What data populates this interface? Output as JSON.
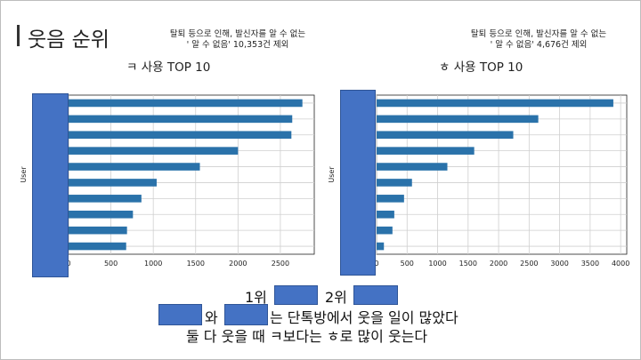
{
  "slide": {
    "title": "웃음 순위",
    "accent_color": "#333333",
    "mask_color": "#4472c4"
  },
  "notes": {
    "left": [
      "탈퇴 등으로 인해, 발신자를 알 수 없는",
      "' 알 수 없음' 10,353건 제외"
    ],
    "right": [
      "탈퇴 등으로 인해, 발신자를 알 수 없는",
      "' 알 수 없음' 4,676건 제외"
    ]
  },
  "bottom_text": {
    "rank1": "1위",
    "rank2": "2위",
    "line2_mid": "와",
    "line2_end": "는 단톡방에서 웃을 일이 많았다",
    "line3": "둘 다 웃을 때 ㅋ보다는 ㅎ로 많이 웃는다"
  },
  "chart_data": [
    {
      "type": "bar",
      "orientation": "horizontal",
      "title": "ㅋ 사용 TOP 10",
      "ylabel": "User",
      "xlabel": "",
      "values": [
        2760,
        2640,
        2630,
        2000,
        1550,
        1040,
        860,
        760,
        690,
        680
      ],
      "xlim": [
        0,
        2900
      ],
      "xticks": [
        0,
        500,
        1000,
        1500,
        2000,
        2500
      ],
      "bar_color": "#2a72aa",
      "grid": true
    },
    {
      "type": "bar",
      "orientation": "horizontal",
      "title": "ㅎ 사용 TOP 10",
      "ylabel": "User",
      "xlabel": "",
      "values": [
        3880,
        2650,
        2240,
        1600,
        1160,
        580,
        450,
        290,
        260,
        120
      ],
      "xlim": [
        0,
        4100
      ],
      "xticks": [
        0,
        500,
        1000,
        1500,
        2000,
        2500,
        3000,
        3500,
        4000
      ],
      "bar_color": "#2a72aa",
      "grid": true
    }
  ]
}
